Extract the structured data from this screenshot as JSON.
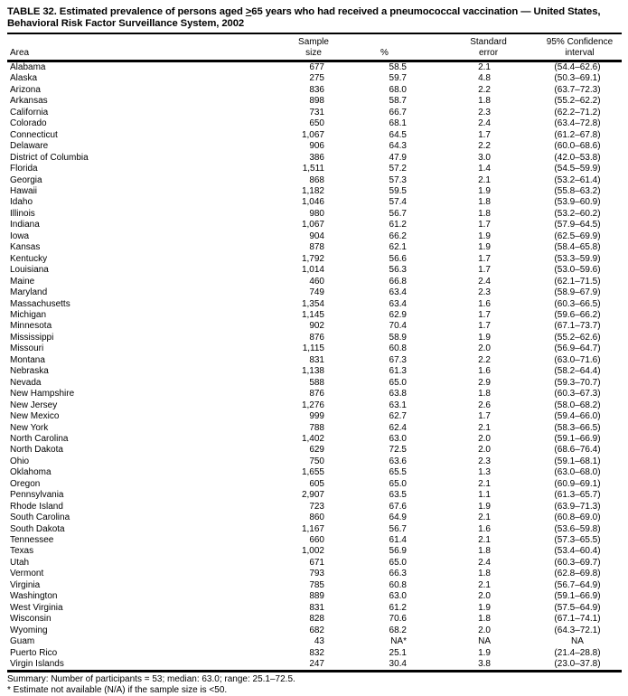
{
  "title": {
    "line1_prefix": "TABLE 32. Estimated prevalence of persons aged ",
    "line1_geq": ">",
    "line1_rest": "65 years who had received a pneumococcal vaccination — United States,",
    "line2": "Behavioral Risk Factor Surveillance System, 2002"
  },
  "table": {
    "columns": {
      "area": "Area",
      "sample_size": "Sample\nsize",
      "percent": "%",
      "standard_error": "Standard\nerror",
      "confidence_interval": "95% Confidence\ninterval"
    },
    "rows": [
      {
        "area": "Alabama",
        "sample_size": "677",
        "percent": "58.5",
        "standard_error": "2.1",
        "confidence_interval": "(54.4–62.6)"
      },
      {
        "area": "Alaska",
        "sample_size": "275",
        "percent": "59.7",
        "standard_error": "4.8",
        "confidence_interval": "(50.3–69.1)"
      },
      {
        "area": "Arizona",
        "sample_size": "836",
        "percent": "68.0",
        "standard_error": "2.2",
        "confidence_interval": "(63.7–72.3)"
      },
      {
        "area": "Arkansas",
        "sample_size": "898",
        "percent": "58.7",
        "standard_error": "1.8",
        "confidence_interval": "(55.2–62.2)"
      },
      {
        "area": "California",
        "sample_size": "731",
        "percent": "66.7",
        "standard_error": "2.3",
        "confidence_interval": "(62.2–71.2)"
      },
      {
        "area": "Colorado",
        "sample_size": "650",
        "percent": "68.1",
        "standard_error": "2.4",
        "confidence_interval": "(63.4–72.8)"
      },
      {
        "area": "Connecticut",
        "sample_size": "1,067",
        "percent": "64.5",
        "standard_error": "1.7",
        "confidence_interval": "(61.2–67.8)"
      },
      {
        "area": "Delaware",
        "sample_size": "906",
        "percent": "64.3",
        "standard_error": "2.2",
        "confidence_interval": "(60.0–68.6)"
      },
      {
        "area": "District of Columbia",
        "sample_size": "386",
        "percent": "47.9",
        "standard_error": "3.0",
        "confidence_interval": "(42.0–53.8)"
      },
      {
        "area": "Florida",
        "sample_size": "1,511",
        "percent": "57.2",
        "standard_error": "1.4",
        "confidence_interval": "(54.5–59.9)"
      },
      {
        "area": "Georgia",
        "sample_size": "868",
        "percent": "57.3",
        "standard_error": "2.1",
        "confidence_interval": "(53.2–61.4)"
      },
      {
        "area": "Hawaii",
        "sample_size": "1,182",
        "percent": "59.5",
        "standard_error": "1.9",
        "confidence_interval": "(55.8–63.2)"
      },
      {
        "area": "Idaho",
        "sample_size": "1,046",
        "percent": "57.4",
        "standard_error": "1.8",
        "confidence_interval": "(53.9–60.9)"
      },
      {
        "area": "Illinois",
        "sample_size": "980",
        "percent": "56.7",
        "standard_error": "1.8",
        "confidence_interval": "(53.2–60.2)"
      },
      {
        "area": "Indiana",
        "sample_size": "1,067",
        "percent": "61.2",
        "standard_error": "1.7",
        "confidence_interval": "(57.9–64.5)"
      },
      {
        "area": "Iowa",
        "sample_size": "904",
        "percent": "66.2",
        "standard_error": "1.9",
        "confidence_interval": "(62.5–69.9)"
      },
      {
        "area": "Kansas",
        "sample_size": "878",
        "percent": "62.1",
        "standard_error": "1.9",
        "confidence_interval": "(58.4–65.8)"
      },
      {
        "area": "Kentucky",
        "sample_size": "1,792",
        "percent": "56.6",
        "standard_error": "1.7",
        "confidence_interval": "(53.3–59.9)"
      },
      {
        "area": "Louisiana",
        "sample_size": "1,014",
        "percent": "56.3",
        "standard_error": "1.7",
        "confidence_interval": "(53.0–59.6)"
      },
      {
        "area": "Maine",
        "sample_size": "460",
        "percent": "66.8",
        "standard_error": "2.4",
        "confidence_interval": "(62.1–71.5)"
      },
      {
        "area": "Maryland",
        "sample_size": "749",
        "percent": "63.4",
        "standard_error": "2.3",
        "confidence_interval": "(58.9–67.9)"
      },
      {
        "area": "Massachusetts",
        "sample_size": "1,354",
        "percent": "63.4",
        "standard_error": "1.6",
        "confidence_interval": "(60.3–66.5)"
      },
      {
        "area": "Michigan",
        "sample_size": "1,145",
        "percent": "62.9",
        "standard_error": "1.7",
        "confidence_interval": "(59.6–66.2)"
      },
      {
        "area": "Minnesota",
        "sample_size": "902",
        "percent": "70.4",
        "standard_error": "1.7",
        "confidence_interval": "(67.1–73.7)"
      },
      {
        "area": "Mississippi",
        "sample_size": "876",
        "percent": "58.9",
        "standard_error": "1.9",
        "confidence_interval": "(55.2–62.6)"
      },
      {
        "area": "Missouri",
        "sample_size": "1,115",
        "percent": "60.8",
        "standard_error": "2.0",
        "confidence_interval": "(56.9–64.7)"
      },
      {
        "area": "Montana",
        "sample_size": "831",
        "percent": "67.3",
        "standard_error": "2.2",
        "confidence_interval": "(63.0–71.6)"
      },
      {
        "area": "Nebraska",
        "sample_size": "1,138",
        "percent": "61.3",
        "standard_error": "1.6",
        "confidence_interval": "(58.2–64.4)"
      },
      {
        "area": "Nevada",
        "sample_size": "588",
        "percent": "65.0",
        "standard_error": "2.9",
        "confidence_interval": "(59.3–70.7)"
      },
      {
        "area": "New Hampshire",
        "sample_size": "876",
        "percent": "63.8",
        "standard_error": "1.8",
        "confidence_interval": "(60.3–67.3)"
      },
      {
        "area": "New Jersey",
        "sample_size": "1,276",
        "percent": "63.1",
        "standard_error": "2.6",
        "confidence_interval": "(58.0–68.2)"
      },
      {
        "area": "New Mexico",
        "sample_size": "999",
        "percent": "62.7",
        "standard_error": "1.7",
        "confidence_interval": "(59.4–66.0)"
      },
      {
        "area": "New York",
        "sample_size": "788",
        "percent": "62.4",
        "standard_error": "2.1",
        "confidence_interval": "(58.3–66.5)"
      },
      {
        "area": "North Carolina",
        "sample_size": "1,402",
        "percent": "63.0",
        "standard_error": "2.0",
        "confidence_interval": "(59.1–66.9)"
      },
      {
        "area": "North Dakota",
        "sample_size": "629",
        "percent": "72.5",
        "standard_error": "2.0",
        "confidence_interval": "(68.6–76.4)"
      },
      {
        "area": "Ohio",
        "sample_size": "750",
        "percent": "63.6",
        "standard_error": "2.3",
        "confidence_interval": "(59.1–68.1)"
      },
      {
        "area": "Oklahoma",
        "sample_size": "1,655",
        "percent": "65.5",
        "standard_error": "1.3",
        "confidence_interval": "(63.0–68.0)"
      },
      {
        "area": "Oregon",
        "sample_size": "605",
        "percent": "65.0",
        "standard_error": "2.1",
        "confidence_interval": "(60.9–69.1)"
      },
      {
        "area": "Pennsylvania",
        "sample_size": "2,907",
        "percent": "63.5",
        "standard_error": "1.1",
        "confidence_interval": "(61.3–65.7)"
      },
      {
        "area": "Rhode Island",
        "sample_size": "723",
        "percent": "67.6",
        "standard_error": "1.9",
        "confidence_interval": "(63.9–71.3)"
      },
      {
        "area": "South Carolina",
        "sample_size": "860",
        "percent": "64.9",
        "standard_error": "2.1",
        "confidence_interval": "(60.8–69.0)"
      },
      {
        "area": "South Dakota",
        "sample_size": "1,167",
        "percent": "56.7",
        "standard_error": "1.6",
        "confidence_interval": "(53.6–59.8)"
      },
      {
        "area": "Tennessee",
        "sample_size": "660",
        "percent": "61.4",
        "standard_error": "2.1",
        "confidence_interval": "(57.3–65.5)"
      },
      {
        "area": "Texas",
        "sample_size": "1,002",
        "percent": "56.9",
        "standard_error": "1.8",
        "confidence_interval": "(53.4–60.4)"
      },
      {
        "area": "Utah",
        "sample_size": "671",
        "percent": "65.0",
        "standard_error": "2.4",
        "confidence_interval": "(60.3–69.7)"
      },
      {
        "area": "Vermont",
        "sample_size": "793",
        "percent": "66.3",
        "standard_error": "1.8",
        "confidence_interval": "(62.8–69.8)"
      },
      {
        "area": "Virginia",
        "sample_size": "785",
        "percent": "60.8",
        "standard_error": "2.1",
        "confidence_interval": "(56.7–64.9)"
      },
      {
        "area": "Washington",
        "sample_size": "889",
        "percent": "63.0",
        "standard_error": "2.0",
        "confidence_interval": "(59.1–66.9)"
      },
      {
        "area": "West Virginia",
        "sample_size": "831",
        "percent": "61.2",
        "standard_error": "1.9",
        "confidence_interval": "(57.5–64.9)"
      },
      {
        "area": "Wisconsin",
        "sample_size": "828",
        "percent": "70.6",
        "standard_error": "1.8",
        "confidence_interval": "(67.1–74.1)"
      },
      {
        "area": "Wyoming",
        "sample_size": "682",
        "percent": "68.2",
        "standard_error": "2.0",
        "confidence_interval": "(64.3–72.1)"
      },
      {
        "area": "Guam",
        "sample_size": "43",
        "percent": "NA*",
        "standard_error": "NA",
        "confidence_interval": "NA"
      },
      {
        "area": "Puerto Rico",
        "sample_size": "832",
        "percent": "25.1",
        "standard_error": "1.9",
        "confidence_interval": "(21.4–28.8)"
      },
      {
        "area": "Virgin Islands",
        "sample_size": "247",
        "percent": "30.4",
        "standard_error": "3.8",
        "confidence_interval": "(23.0–37.8)"
      }
    ]
  },
  "summary": "Summary: Number of participants = 53; median: 63.0; range: 25.1–72.5.",
  "footnote": "* Estimate not available (N/A) if the sample size is <50."
}
